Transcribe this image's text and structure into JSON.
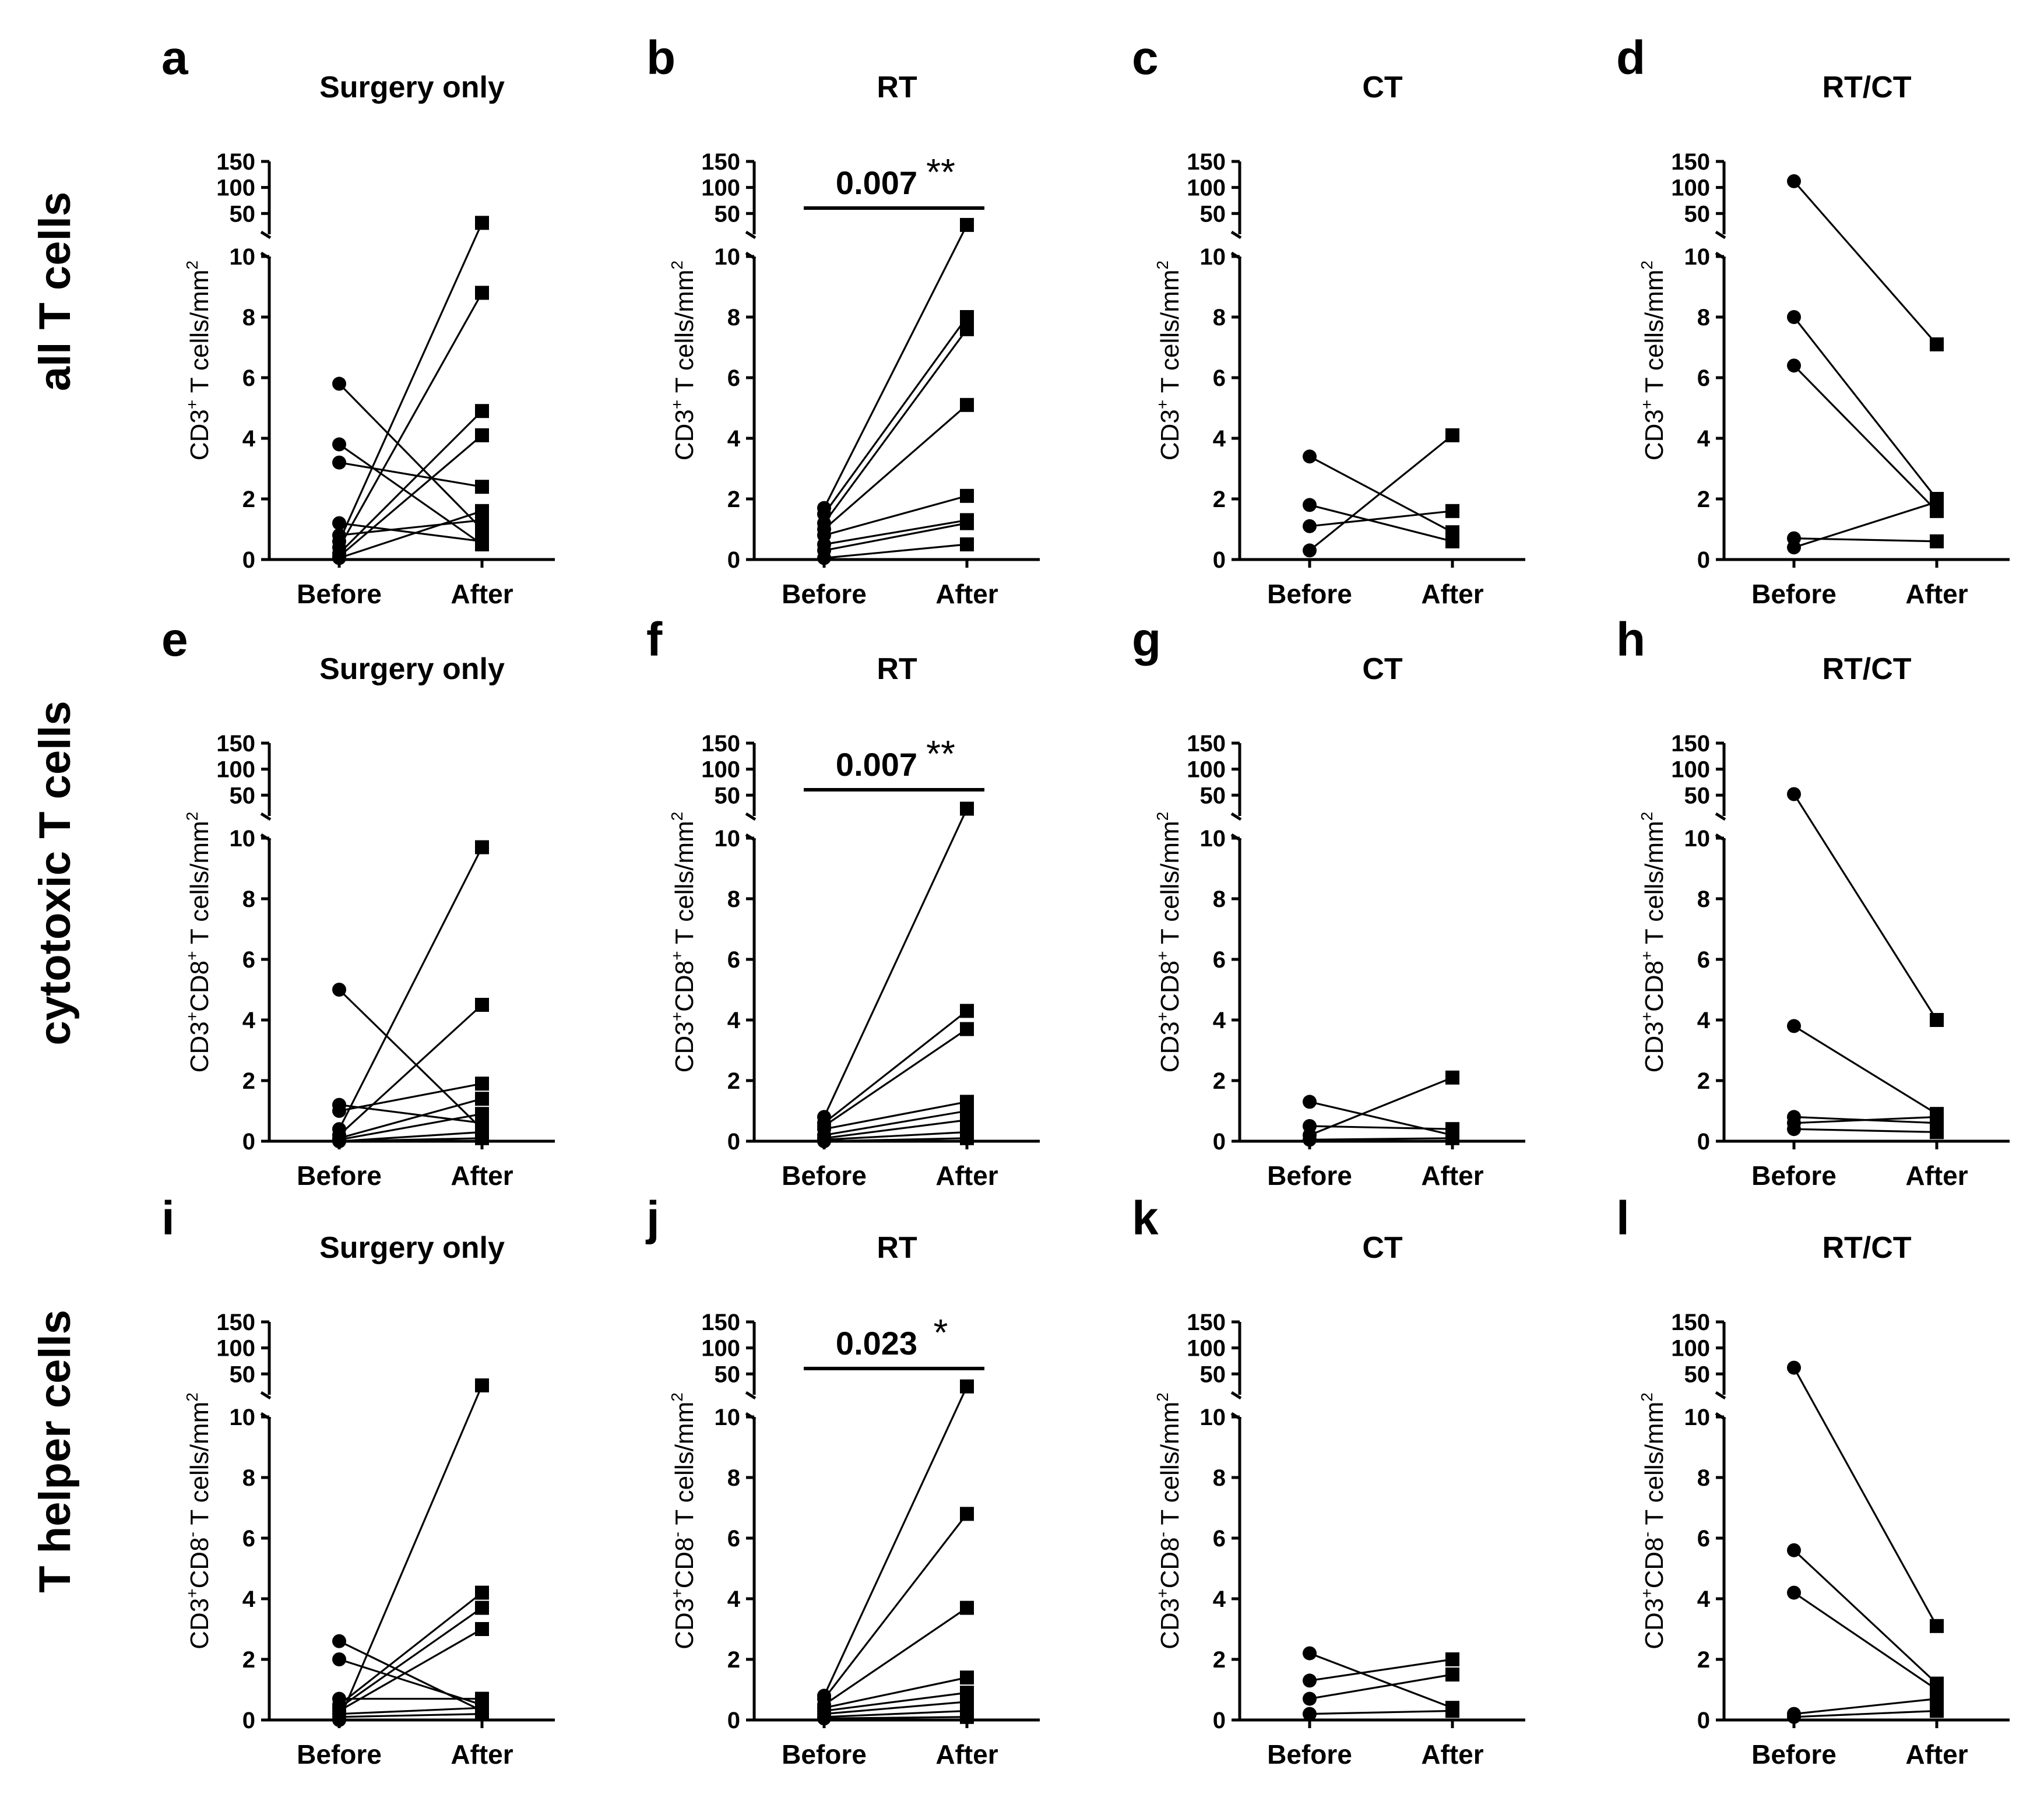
{
  "row_labels": [
    "all T cells",
    "cytotoxic T cells",
    "T helper cells"
  ],
  "chart_data": [
    {
      "id": "a",
      "type": "line",
      "title": "Surgery only",
      "row": 0,
      "col": 0,
      "ylabel": "CD3+ T cells/mm2",
      "ylabel_main": "CD3",
      "ylabel_rest": " T cells/mm",
      "ylabel_parts": [
        "+"
      ],
      "ylabel_sq": "2",
      "categories": [
        "Before",
        "After"
      ],
      "y_ticks_lower": [
        "0",
        "2",
        "4",
        "6",
        "8",
        "10"
      ],
      "y_ticks_upper": [
        "50",
        "100",
        "150"
      ],
      "ylim_lower": [
        0,
        10
      ],
      "ylim_upper": [
        10,
        150
      ],
      "pairs": [
        [
          5.8,
          1.0
        ],
        [
          3.8,
          0.5
        ],
        [
          3.2,
          2.4
        ],
        [
          1.2,
          0.6
        ],
        [
          0.8,
          1.3
        ],
        [
          0.6,
          32
        ],
        [
          0.4,
          8.8
        ],
        [
          0.2,
          4.9
        ],
        [
          0.1,
          4.1
        ],
        [
          0.05,
          1.6
        ]
      ],
      "p_value": "",
      "stars": ""
    },
    {
      "id": "b",
      "type": "line",
      "title": "RT",
      "row": 0,
      "col": 1,
      "ylabel": "CD3+ T cells/mm2",
      "ylabel_main": "CD3",
      "ylabel_rest": " T cells/mm",
      "ylabel_parts": [
        "+"
      ],
      "ylabel_sq": "2",
      "categories": [
        "Before",
        "After"
      ],
      "y_ticks_lower": [
        "0",
        "2",
        "4",
        "6",
        "8",
        "10"
      ],
      "y_ticks_upper": [
        "50",
        "100",
        "150"
      ],
      "ylim_lower": [
        0,
        10
      ],
      "ylim_upper": [
        10,
        150
      ],
      "pairs": [
        [
          1.7,
          28
        ],
        [
          1.5,
          8.0
        ],
        [
          1.2,
          7.6
        ],
        [
          1.0,
          5.1
        ],
        [
          0.8,
          2.1
        ],
        [
          0.5,
          1.3
        ],
        [
          0.3,
          1.2
        ],
        [
          0.05,
          0.5
        ]
      ],
      "p_value": "0.007",
      "stars": "**"
    },
    {
      "id": "c",
      "type": "line",
      "title": "CT",
      "row": 0,
      "col": 2,
      "ylabel": "CD3+ T cells/mm2",
      "ylabel_main": "CD3",
      "ylabel_rest": " T cells/mm",
      "ylabel_parts": [
        "+"
      ],
      "ylabel_sq": "2",
      "categories": [
        "Before",
        "After"
      ],
      "y_ticks_lower": [
        "0",
        "2",
        "4",
        "6",
        "8",
        "10"
      ],
      "y_ticks_upper": [
        "50",
        "100",
        "150"
      ],
      "ylim_lower": [
        0,
        10
      ],
      "ylim_upper": [
        10,
        150
      ],
      "pairs": [
        [
          3.4,
          0.9
        ],
        [
          1.8,
          0.6
        ],
        [
          1.1,
          1.6
        ],
        [
          0.3,
          4.1
        ]
      ],
      "p_value": "",
      "stars": ""
    },
    {
      "id": "d",
      "type": "line",
      "title": "RT/CT",
      "row": 0,
      "col": 3,
      "ylabel": "CD3+ T cells/mm2",
      "ylabel_main": "CD3",
      "ylabel_rest": " T cells/mm",
      "ylabel_parts": [
        "+"
      ],
      "ylabel_sq": "2",
      "categories": [
        "Before",
        "After"
      ],
      "y_ticks_lower": [
        "0",
        "2",
        "4",
        "6",
        "8",
        "10"
      ],
      "y_ticks_upper": [
        "50",
        "100",
        "150"
      ],
      "ylim_lower": [
        0,
        10
      ],
      "ylim_upper": [
        10,
        150
      ],
      "pairs": [
        [
          112,
          7.1
        ],
        [
          8.0,
          2.0
        ],
        [
          6.4,
          1.6
        ],
        [
          0.7,
          0.6
        ],
        [
          0.4,
          1.9
        ]
      ],
      "p_value": "",
      "stars": ""
    },
    {
      "id": "e",
      "type": "line",
      "title": "Surgery only",
      "row": 1,
      "col": 0,
      "ylabel": "CD3+CD8+ T cells/mm2",
      "ylabel_main": "CD3",
      "ylabel_rest": " T cells/mm",
      "ylabel_parts": [
        "+",
        "CD8",
        "+"
      ],
      "ylabel_sq": "2",
      "categories": [
        "Before",
        "After"
      ],
      "y_ticks_lower": [
        "0",
        "2",
        "4",
        "6",
        "8",
        "10"
      ],
      "y_ticks_upper": [
        "50",
        "100",
        "150"
      ],
      "ylim_lower": [
        0,
        10
      ],
      "ylim_upper": [
        10,
        150
      ],
      "pairs": [
        [
          5.0,
          0.4
        ],
        [
          1.2,
          0.6
        ],
        [
          1.0,
          1.9
        ],
        [
          0.4,
          9.7
        ],
        [
          0.2,
          4.5
        ],
        [
          0.1,
          1.4
        ],
        [
          0.05,
          0.9
        ],
        [
          0.0,
          0.3
        ],
        [
          0.0,
          0.1
        ]
      ],
      "p_value": "",
      "stars": ""
    },
    {
      "id": "f",
      "type": "line",
      "title": "RT",
      "row": 1,
      "col": 1,
      "ylabel": "CD3+CD8+ T cells/mm2",
      "ylabel_main": "CD3",
      "ylabel_rest": " T cells/mm",
      "ylabel_parts": [
        "+",
        "CD8",
        "+"
      ],
      "ylabel_sq": "2",
      "categories": [
        "Before",
        "After"
      ],
      "y_ticks_lower": [
        "0",
        "2",
        "4",
        "6",
        "8",
        "10"
      ],
      "y_ticks_upper": [
        "50",
        "100",
        "150"
      ],
      "ylim_lower": [
        0,
        10
      ],
      "ylim_upper": [
        10,
        150
      ],
      "pairs": [
        [
          0.8,
          24
        ],
        [
          0.6,
          4.3
        ],
        [
          0.5,
          3.7
        ],
        [
          0.4,
          1.3
        ],
        [
          0.2,
          1.0
        ],
        [
          0.1,
          0.7
        ],
        [
          0.05,
          0.3
        ],
        [
          0.0,
          0.1
        ]
      ],
      "p_value": "0.007",
      "stars": "**"
    },
    {
      "id": "g",
      "type": "line",
      "title": "CT",
      "row": 1,
      "col": 2,
      "ylabel": "CD3+CD8+ T cells/mm2",
      "ylabel_main": "CD3",
      "ylabel_rest": " T cells/mm",
      "ylabel_parts": [
        "+",
        "CD8",
        "+"
      ],
      "ylabel_sq": "2",
      "categories": [
        "Before",
        "After"
      ],
      "y_ticks_lower": [
        "0",
        "2",
        "4",
        "6",
        "8",
        "10"
      ],
      "y_ticks_upper": [
        "50",
        "100",
        "150"
      ],
      "ylim_lower": [
        0,
        10
      ],
      "ylim_upper": [
        10,
        150
      ],
      "pairs": [
        [
          1.3,
          0.2
        ],
        [
          0.5,
          0.4
        ],
        [
          0.2,
          2.1
        ],
        [
          0.05,
          0.1
        ]
      ],
      "p_value": "",
      "stars": ""
    },
    {
      "id": "h",
      "type": "line",
      "title": "RT/CT",
      "row": 1,
      "col": 3,
      "ylabel": "CD3+CD8+ T cells/mm2",
      "ylabel_main": "CD3",
      "ylabel_rest": " T cells/mm",
      "ylabel_parts": [
        "+",
        "CD8",
        "+"
      ],
      "ylabel_sq": "2",
      "categories": [
        "Before",
        "After"
      ],
      "y_ticks_lower": [
        "0",
        "2",
        "4",
        "6",
        "8",
        "10"
      ],
      "y_ticks_upper": [
        "50",
        "100",
        "150"
      ],
      "ylim_lower": [
        0,
        10
      ],
      "ylim_upper": [
        10,
        150
      ],
      "pairs": [
        [
          52,
          4.0
        ],
        [
          3.8,
          0.9
        ],
        [
          0.8,
          0.6
        ],
        [
          0.6,
          0.8
        ],
        [
          0.4,
          0.3
        ]
      ],
      "p_value": "",
      "stars": ""
    },
    {
      "id": "i",
      "type": "line",
      "title": "Surgery only",
      "row": 2,
      "col": 0,
      "ylabel": "CD3+CD8- T cells/mm2",
      "ylabel_main": "CD3",
      "ylabel_rest": " T cells/mm",
      "ylabel_parts": [
        "+",
        "CD8",
        "-"
      ],
      "ylabel_sq": "2",
      "categories": [
        "Before",
        "After"
      ],
      "y_ticks_lower": [
        "0",
        "2",
        "4",
        "6",
        "8",
        "10"
      ],
      "y_ticks_upper": [
        "50",
        "100",
        "150"
      ],
      "ylim_lower": [
        0,
        10
      ],
      "ylim_upper": [
        10,
        150
      ],
      "pairs": [
        [
          2.6,
          0.3
        ],
        [
          2.0,
          0.5
        ],
        [
          0.7,
          0.7
        ],
        [
          0.5,
          4.2
        ],
        [
          0.4,
          3.7
        ],
        [
          0.3,
          3.0
        ],
        [
          0.2,
          0.4
        ],
        [
          0.1,
          0.2
        ],
        [
          0.0,
          28
        ]
      ],
      "p_value": "",
      "stars": ""
    },
    {
      "id": "j",
      "type": "line",
      "title": "RT",
      "row": 2,
      "col": 1,
      "ylabel": "CD3+CD8- T cells/mm2",
      "ylabel_main": "CD3",
      "ylabel_rest": " T cells/mm",
      "ylabel_parts": [
        "+",
        "CD8",
        "-"
      ],
      "ylabel_sq": "2",
      "categories": [
        "Before",
        "After"
      ],
      "y_ticks_lower": [
        "0",
        "2",
        "4",
        "6",
        "8",
        "10"
      ],
      "y_ticks_upper": [
        "50",
        "100",
        "150"
      ],
      "ylim_lower": [
        0,
        10
      ],
      "ylim_upper": [
        10,
        150
      ],
      "pairs": [
        [
          0.8,
          26
        ],
        [
          0.7,
          6.8
        ],
        [
          0.5,
          3.7
        ],
        [
          0.4,
          1.4
        ],
        [
          0.3,
          0.9
        ],
        [
          0.2,
          0.6
        ],
        [
          0.1,
          0.3
        ],
        [
          0.05,
          0.1
        ]
      ],
      "p_value": "0.023",
      "stars": "*"
    },
    {
      "id": "k",
      "type": "line",
      "title": "CT",
      "row": 2,
      "col": 2,
      "ylabel": "CD3+CD8- T cells/mm2",
      "ylabel_main": "CD3",
      "ylabel_rest": " T cells/mm",
      "ylabel_parts": [
        "+",
        "CD8",
        "-"
      ],
      "ylabel_sq": "2",
      "categories": [
        "Before",
        "After"
      ],
      "y_ticks_lower": [
        "0",
        "2",
        "4",
        "6",
        "8",
        "10"
      ],
      "y_ticks_upper": [
        "50",
        "100",
        "150"
      ],
      "ylim_lower": [
        0,
        10
      ],
      "ylim_upper": [
        10,
        150
      ],
      "pairs": [
        [
          2.2,
          0.4
        ],
        [
          1.3,
          2.0
        ],
        [
          0.7,
          1.5
        ],
        [
          0.2,
          0.3
        ]
      ],
      "p_value": "",
      "stars": ""
    },
    {
      "id": "l",
      "type": "line",
      "title": "RT/CT",
      "row": 2,
      "col": 3,
      "ylabel": "CD3+CD8- T cells/mm2",
      "ylabel_main": "CD3",
      "ylabel_rest": " T cells/mm",
      "ylabel_parts": [
        "+",
        "CD8",
        "-"
      ],
      "ylabel_sq": "2",
      "categories": [
        "Before",
        "After"
      ],
      "y_ticks_lower": [
        "0",
        "2",
        "4",
        "6",
        "8",
        "10"
      ],
      "y_ticks_upper": [
        "50",
        "100",
        "150"
      ],
      "ylim_lower": [
        0,
        10
      ],
      "ylim_upper": [
        10,
        150
      ],
      "pairs": [
        [
          62,
          3.1
        ],
        [
          5.6,
          1.2
        ],
        [
          4.2,
          1.0
        ],
        [
          0.2,
          0.7
        ],
        [
          0.1,
          0.3
        ]
      ],
      "p_value": "",
      "stars": ""
    }
  ]
}
